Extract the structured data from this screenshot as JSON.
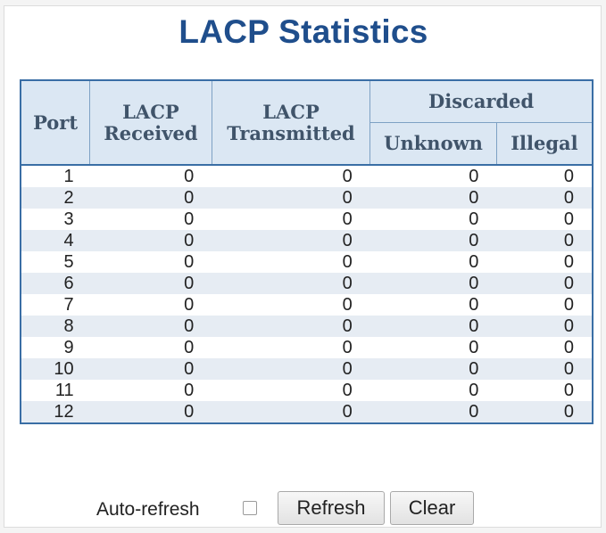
{
  "title": "LACP Statistics",
  "table": {
    "headers": {
      "port": "Port",
      "lacp_received": "LACP Received",
      "lacp_transmitted": "LACP Transmitted",
      "discarded": "Discarded",
      "unknown": "Unknown",
      "illegal": "Illegal"
    },
    "rows": [
      {
        "port": "1",
        "received": "0",
        "transmitted": "0",
        "unknown": "0",
        "illegal": "0"
      },
      {
        "port": "2",
        "received": "0",
        "transmitted": "0",
        "unknown": "0",
        "illegal": "0"
      },
      {
        "port": "3",
        "received": "0",
        "transmitted": "0",
        "unknown": "0",
        "illegal": "0"
      },
      {
        "port": "4",
        "received": "0",
        "transmitted": "0",
        "unknown": "0",
        "illegal": "0"
      },
      {
        "port": "5",
        "received": "0",
        "transmitted": "0",
        "unknown": "0",
        "illegal": "0"
      },
      {
        "port": "6",
        "received": "0",
        "transmitted": "0",
        "unknown": "0",
        "illegal": "0"
      },
      {
        "port": "7",
        "received": "0",
        "transmitted": "0",
        "unknown": "0",
        "illegal": "0"
      },
      {
        "port": "8",
        "received": "0",
        "transmitted": "0",
        "unknown": "0",
        "illegal": "0"
      },
      {
        "port": "9",
        "received": "0",
        "transmitted": "0",
        "unknown": "0",
        "illegal": "0"
      },
      {
        "port": "10",
        "received": "0",
        "transmitted": "0",
        "unknown": "0",
        "illegal": "0"
      },
      {
        "port": "11",
        "received": "0",
        "transmitted": "0",
        "unknown": "0",
        "illegal": "0"
      },
      {
        "port": "12",
        "received": "0",
        "transmitted": "0",
        "unknown": "0",
        "illegal": "0"
      }
    ]
  },
  "controls": {
    "auto_refresh_label": "Auto-refresh",
    "auto_refresh_checked": false,
    "refresh_label": "Refresh",
    "clear_label": "Clear"
  },
  "colors": {
    "title": "#1f4e8c",
    "header_bg": "#dbe7f3",
    "header_text": "#40546a",
    "table_border": "#3a6ea5",
    "row_alt_bg": "#e6ecf3"
  }
}
